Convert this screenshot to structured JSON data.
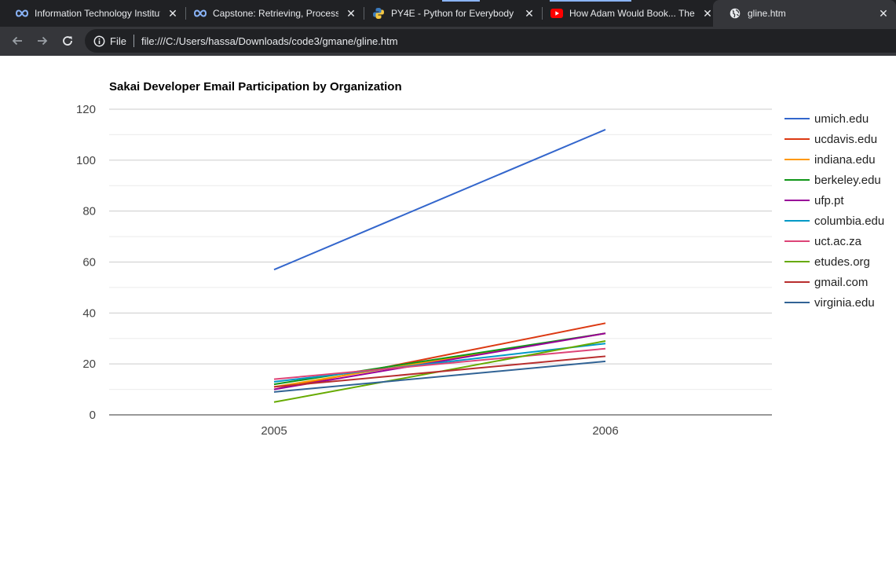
{
  "browser": {
    "tabs": [
      {
        "title": "Information Technology Institute",
        "icon": "infinity-icon",
        "color": "#8ab4f8",
        "active": false
      },
      {
        "title": "Capstone: Retrieving, Processing",
        "icon": "infinity-icon",
        "color": "#8ab4f8",
        "active": false
      },
      {
        "title": "PY4E - Python for Everybody",
        "icon": "python-logo-icon",
        "color": "#f5c842",
        "active": false
      },
      {
        "title": "How Adam Would Book... The Power",
        "icon": "youtube-icon",
        "color": "#ff0000",
        "active": false
      },
      {
        "title": "gline.htm",
        "icon": "globe-icon",
        "color": "#e8eaed",
        "active": true
      }
    ],
    "close_glyph": "✕",
    "address": {
      "scheme": "File",
      "url": "file:///C:/Users/hassa/Downloads/code3/gmane/gline.htm"
    }
  },
  "chart_data": {
    "type": "line",
    "title": "Sakai Developer Email Participation by Organization",
    "categories": [
      "2005",
      "2006"
    ],
    "ylim": [
      0,
      120
    ],
    "yticks": [
      0,
      20,
      40,
      60,
      80,
      100,
      120
    ],
    "grid": true,
    "legend_position": "right",
    "series": [
      {
        "name": "umich.edu",
        "color": "#3366cc",
        "values": [
          57,
          112
        ]
      },
      {
        "name": "ucdavis.edu",
        "color": "#dc3912",
        "values": [
          10,
          36
        ]
      },
      {
        "name": "indiana.edu",
        "color": "#ff9900",
        "values": [
          11,
          32
        ]
      },
      {
        "name": "berkeley.edu",
        "color": "#109618",
        "values": [
          12,
          32
        ]
      },
      {
        "name": "ufp.pt",
        "color": "#990099",
        "values": [
          10,
          32
        ]
      },
      {
        "name": "columbia.edu",
        "color": "#0099c6",
        "values": [
          13,
          28
        ]
      },
      {
        "name": "uct.ac.za",
        "color": "#dd4477",
        "values": [
          14,
          26
        ]
      },
      {
        "name": "etudes.org",
        "color": "#66aa00",
        "values": [
          5,
          29
        ]
      },
      {
        "name": "gmail.com",
        "color": "#b82e2e",
        "values": [
          11,
          23
        ]
      },
      {
        "name": "virginia.edu",
        "color": "#316395",
        "values": [
          9,
          21
        ]
      }
    ]
  }
}
